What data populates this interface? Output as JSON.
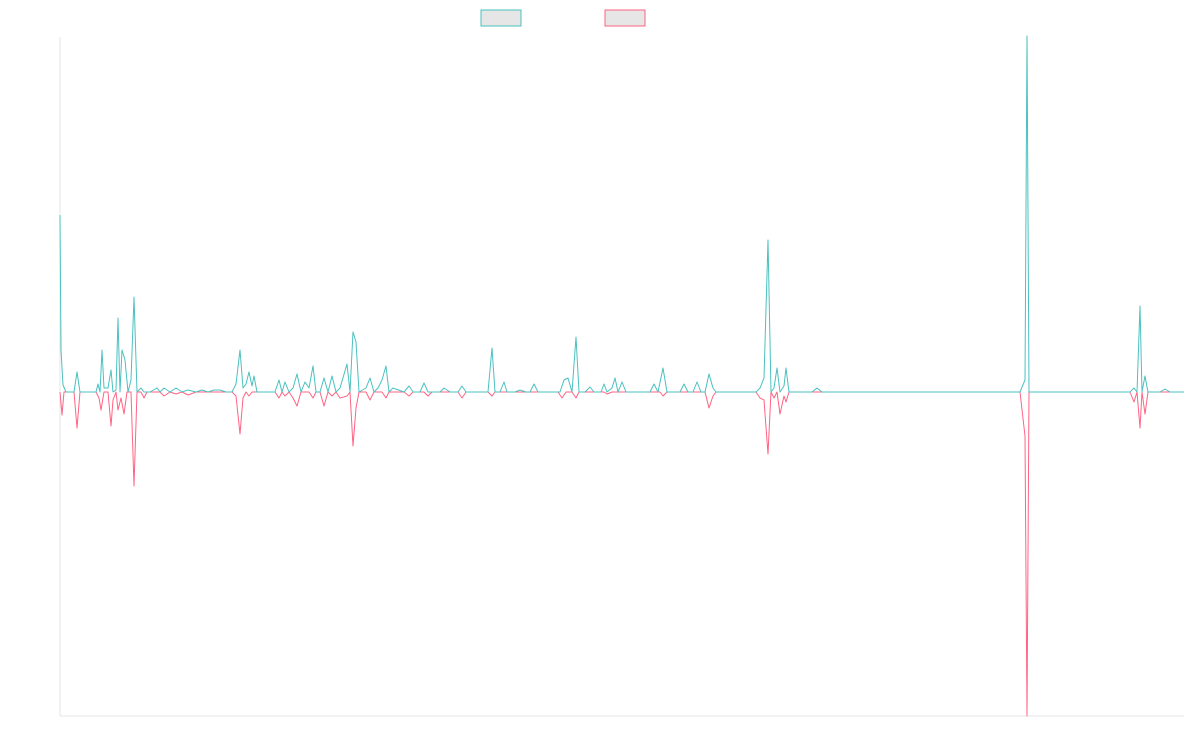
{
  "chart_data": {
    "type": "line",
    "title": "",
    "xlabel": "",
    "ylabel": "",
    "grid": false,
    "legend_placement": "top-center",
    "x_points": 270,
    "ylim": [
      -1,
      1
    ],
    "colors": {
      "series_a": "#4bc0c0",
      "series_b": "#ff6384",
      "swatch_fill": "#e6e6e6",
      "axis": "#e6e6e6"
    },
    "series": [
      {
        "values": [
          [
            0,
            0.54
          ],
          [
            1,
            0.12
          ],
          [
            2,
            0.01
          ],
          [
            4,
            0.0
          ],
          [
            5,
            0.06
          ],
          [
            6,
            0.0
          ],
          [
            9,
            0.0
          ],
          [
            10,
            0.02
          ],
          [
            11,
            0.13
          ],
          [
            12,
            0.02
          ],
          [
            13,
            0.02
          ],
          [
            14,
            0.06
          ],
          [
            15,
            0.0
          ],
          [
            16,
            0.22
          ],
          [
            17,
            0.13
          ],
          [
            18,
            0.08
          ],
          [
            19,
            0.0
          ],
          [
            20,
            0.0
          ],
          [
            21,
            0.0
          ],
          [
            22,
            0.29
          ],
          [
            23,
            0.01
          ],
          [
            24,
            0.0
          ],
          [
            27,
            0.0
          ],
          [
            28,
            0.0
          ],
          [
            29,
            0.01
          ],
          [
            30,
            0.0
          ],
          [
            31,
            0.01
          ],
          [
            32,
            0.0
          ],
          [
            33,
            0.0
          ],
          [
            34,
            0.0
          ],
          [
            36,
            0.0
          ],
          [
            37,
            0.0
          ],
          [
            38,
            0.01
          ],
          [
            39,
            0.0
          ],
          [
            40,
            0.0
          ],
          [
            41,
            0.0
          ],
          [
            42,
            0.0
          ],
          [
            43,
            0.13
          ],
          [
            44,
            0.02
          ],
          [
            45,
            0.05
          ],
          [
            46,
            0.02
          ],
          [
            47,
            0.0
          ],
          [
            52,
            0.0
          ],
          [
            53,
            0.03
          ],
          [
            54,
            0.01
          ],
          [
            55,
            0.0
          ],
          [
            56,
            0.0
          ],
          [
            57,
            0.05
          ],
          [
            58,
            0.0
          ],
          [
            59,
            0.04
          ],
          [
            60,
            0.0
          ],
          [
            61,
            0.03
          ],
          [
            62,
            0.0
          ],
          [
            63,
            0.04
          ],
          [
            64,
            0.01
          ],
          [
            65,
            0.04
          ],
          [
            66,
            0.0
          ],
          [
            67,
            0.08
          ],
          [
            68,
            0.0
          ],
          [
            69,
            0.18
          ],
          [
            70,
            0.15
          ],
          [
            71,
            0.0
          ],
          [
            72,
            0.0
          ],
          [
            73,
            0.02
          ],
          [
            74,
            0.04
          ],
          [
            75,
            0.01
          ],
          [
            76,
            0.0
          ],
          [
            77,
            0.06
          ],
          [
            78,
            0.01
          ],
          [
            79,
            0.0
          ],
          [
            80,
            0.0
          ],
          [
            81,
            0.0
          ],
          [
            82,
            0.01
          ],
          [
            83,
            0.0
          ],
          [
            84,
            0.0
          ],
          [
            85,
            0.03
          ],
          [
            86,
            0.0
          ],
          [
            87,
            0.0
          ],
          [
            88,
            0.0
          ],
          [
            89,
            0.0
          ],
          [
            90,
            0.0
          ],
          [
            91,
            0.0
          ],
          [
            92,
            0.0
          ],
          [
            93,
            0.0
          ],
          [
            94,
            0.01
          ],
          [
            95,
            0.0
          ],
          [
            96,
            0.0
          ],
          [
            97,
            0.0
          ],
          [
            98,
            0.01
          ],
          [
            99,
            0.0
          ],
          [
            100,
            0.0
          ],
          [
            101,
            0.0
          ],
          [
            102,
            0.02
          ],
          [
            103,
            0.13
          ],
          [
            104,
            0.01
          ],
          [
            105,
            0.0
          ],
          [
            106,
            0.02
          ],
          [
            107,
            0.0
          ],
          [
            108,
            0.0
          ],
          [
            109,
            0.0
          ],
          [
            110,
            0.0
          ],
          [
            111,
            0.0
          ],
          [
            112,
            0.0
          ],
          [
            113,
            0.02
          ],
          [
            114,
            0.0
          ],
          [
            115,
            0.0
          ],
          [
            116,
            0.0
          ],
          [
            117,
            0.0
          ],
          [
            118,
            0.02
          ],
          [
            119,
            0.04
          ],
          [
            120,
            0.0
          ],
          [
            121,
            0.17
          ],
          [
            122,
            0.0
          ],
          [
            123,
            0.0
          ],
          [
            124,
            0.0
          ],
          [
            125,
            0.0
          ],
          [
            126,
            0.02
          ],
          [
            127,
            0.0
          ],
          [
            128,
            0.0
          ],
          [
            129,
            0.0
          ],
          [
            130,
            0.02
          ],
          [
            131,
            0.0
          ],
          [
            132,
            0.04
          ],
          [
            133,
            0.04
          ],
          [
            134,
            0.0
          ],
          [
            135,
            0.04
          ],
          [
            136,
            0.0
          ],
          [
            137,
            0.0
          ],
          [
            138,
            0.0
          ],
          [
            139,
            0.0
          ],
          [
            140,
            0.0
          ],
          [
            141,
            0.0
          ],
          [
            142,
            0.02
          ],
          [
            143,
            0.0
          ],
          [
            144,
            0.07
          ],
          [
            145,
            0.0
          ],
          [
            146,
            0.0
          ],
          [
            147,
            0.0
          ],
          [
            148,
            0.0
          ],
          [
            149,
            0.0
          ],
          [
            150,
            0.0
          ],
          [
            151,
            0.0
          ],
          [
            152,
            0.02
          ],
          [
            153,
            0.0
          ],
          [
            154,
            0.0
          ],
          [
            155,
            0.0
          ],
          [
            156,
            0.0
          ],
          [
            157,
            0.0
          ],
          [
            158,
            0.0
          ],
          [
            159,
            0.0
          ],
          [
            160,
            0.0
          ],
          [
            161,
            0.0
          ],
          [
            162,
            0.0
          ],
          [
            163,
            0.0
          ],
          [
            164,
            0.0
          ],
          [
            165,
            0.0
          ],
          [
            166,
            0.0
          ],
          [
            167,
            0.0
          ],
          [
            168,
            0.0
          ],
          [
            169,
            0.0
          ],
          [
            170,
            0.04
          ],
          [
            171,
            0.0
          ],
          [
            172,
            0.46
          ],
          [
            173,
            0.0
          ],
          [
            174,
            0.0
          ],
          [
            175,
            0.06
          ],
          [
            176,
            0.0
          ],
          [
            177,
            0.0
          ],
          [
            178,
            0.07
          ],
          [
            179,
            0.0
          ],
          [
            180,
            0.0
          ],
          [
            181,
            0.0
          ],
          [
            182,
            0.0
          ],
          [
            183,
            0.0
          ],
          [
            184,
            0.0
          ],
          [
            185,
            0.0
          ],
          [
            186,
            0.0
          ],
          [
            187,
            0.0
          ],
          [
            188,
            0.0
          ],
          [
            189,
            0.0
          ],
          [
            190,
            0.0
          ],
          [
            191,
            0.0
          ],
          [
            192,
            0.0
          ],
          [
            193,
            0.0
          ],
          [
            194,
            0.0
          ],
          [
            195,
            0.0
          ],
          [
            196,
            0.0
          ],
          [
            197,
            0.0
          ],
          [
            198,
            0.0
          ],
          [
            199,
            0.0
          ],
          [
            200,
            0.0
          ],
          [
            201,
            0.0
          ],
          [
            202,
            0.0
          ],
          [
            203,
            0.0
          ],
          [
            204,
            0.0
          ],
          [
            205,
            0.0
          ],
          [
            206,
            0.0
          ],
          [
            207,
            0.0
          ],
          [
            208,
            0.0
          ],
          [
            209,
            0.0
          ],
          [
            210,
            0.0
          ],
          [
            211,
            0.0
          ],
          [
            212,
            0.0
          ],
          [
            213,
            0.0
          ],
          [
            214,
            0.0
          ],
          [
            215,
            0.0
          ],
          [
            216,
            0.0
          ],
          [
            217,
            0.0
          ],
          [
            218,
            0.0
          ],
          [
            219,
            0.0
          ],
          [
            220,
            0.0
          ],
          [
            221,
            0.0
          ],
          [
            222,
            0.0
          ],
          [
            223,
            0.0
          ],
          [
            224,
            0.0
          ],
          [
            225,
            0.0
          ],
          [
            226,
            0.0
          ],
          [
            227,
            0.0
          ],
          [
            228,
            0.0
          ],
          [
            229,
            0.0
          ],
          [
            230,
            0.0
          ],
          [
            231,
            0.0
          ],
          [
            232,
            0.0
          ],
          [
            233,
            0.0
          ],
          [
            234,
            0.0
          ],
          [
            235,
            0.0
          ],
          [
            236,
            0.0
          ],
          [
            237,
            0.0
          ],
          [
            238,
            0.0
          ],
          [
            239,
            0.0
          ],
          [
            240,
            0.0
          ],
          [
            241,
            0.0
          ],
          [
            242,
            0.0
          ],
          [
            243,
            0.0
          ],
          [
            244,
            0.0
          ],
          [
            245,
            0.0
          ],
          [
            246,
            0.0
          ],
          [
            247,
            0.0
          ],
          [
            248,
            0.0
          ],
          [
            249,
            0.0
          ],
          [
            250,
            0.0
          ],
          [
            251,
            0.0
          ],
          [
            252,
            0.0
          ],
          [
            253,
            0.0
          ],
          [
            254,
            0.0
          ],
          [
            255,
            0.0
          ],
          [
            256,
            0.0
          ],
          [
            257,
            0.0
          ],
          [
            258,
            0.0
          ],
          [
            259,
            0.0
          ],
          [
            260,
            0.0
          ],
          [
            261,
            0.0
          ],
          [
            262,
            0.0
          ],
          [
            263,
            0.0
          ],
          [
            264,
            0.0
          ],
          [
            265,
            0.0
          ],
          [
            266,
            0.0
          ],
          [
            267,
            0.0
          ],
          [
            268,
            0.0
          ],
          [
            269,
            0.0
          ]
        ],
        "legend_color": "#4bc0c0"
      },
      {
        "values": [],
        "legend_color": "#ff6384"
      }
    ],
    "notes_removed": true
  }
}
